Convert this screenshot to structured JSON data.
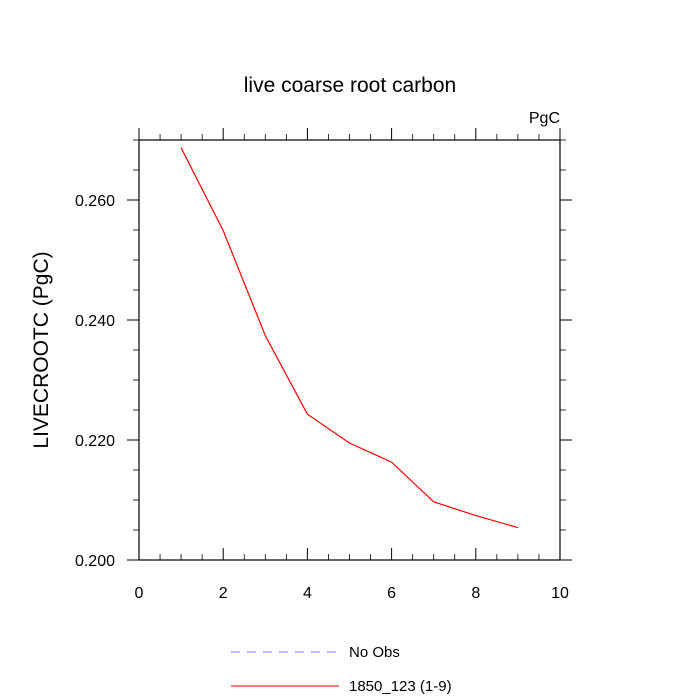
{
  "chart_data": {
    "type": "line",
    "title": "live coarse root carbon",
    "units": "PgC",
    "xlabel": "",
    "ylabel": "LIVECROOTC  (PgC)",
    "xlim": [
      0,
      10
    ],
    "ylim": [
      0.2,
      0.27
    ],
    "xticks": [
      0,
      2,
      4,
      6,
      8,
      10
    ],
    "xtick_labels": [
      "0",
      "2",
      "4",
      "6",
      "8",
      "10"
    ],
    "yticks": [
      0.2,
      0.22,
      0.24,
      0.26
    ],
    "ytick_labels": [
      "0.200",
      "0.220",
      "0.240",
      "0.260"
    ],
    "grid": false,
    "legend_position": "bottom",
    "series": [
      {
        "name": "No Obs",
        "color": "#8080ff",
        "dash": "dashed",
        "x": [],
        "y": []
      },
      {
        "name": "1850_123 (1-9)",
        "color": "#ff0000",
        "dash": "solid",
        "x": [
          1,
          2,
          3,
          4,
          5,
          6,
          7,
          8,
          9
        ],
        "y": [
          0.2687,
          0.2549,
          0.2374,
          0.2243,
          0.2195,
          0.2163,
          0.2097,
          0.2074,
          0.2054
        ]
      }
    ]
  }
}
